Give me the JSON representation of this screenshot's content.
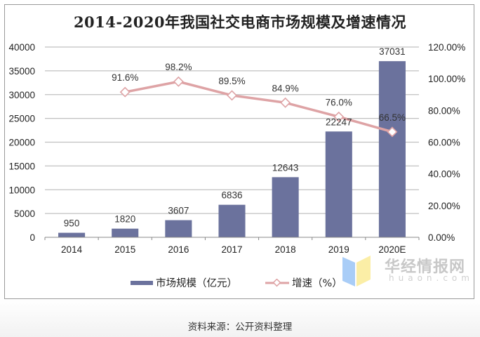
{
  "title": "2014-2020年我国社交电商市场规模及增速情况",
  "source": "资料来源：公开资料整理",
  "watermark": {
    "name_cn": "华经情报网",
    "domain": "huaon.com"
  },
  "colors": {
    "bar": "#6b729d",
    "line": "#dea3a5",
    "grid": "#c0c0c0",
    "axis": "#888888"
  },
  "legend": [
    {
      "label": "市场规模（亿元）",
      "type": "bar"
    },
    {
      "label": "增速（%）",
      "type": "line"
    }
  ],
  "chart_data": {
    "type": "bar",
    "title": "2014-2020年我国社交电商市场规模及增速情况",
    "categories": [
      "2014",
      "2015",
      "2016",
      "2017",
      "2018",
      "2019",
      "2020E"
    ],
    "series": [
      {
        "name": "市场规模（亿元）",
        "type": "bar",
        "axis": "left",
        "values": [
          950,
          1820,
          3607,
          6836,
          12643,
          22247,
          37031
        ],
        "labels": [
          "950",
          "1820",
          "3607",
          "6836",
          "12643",
          "22247",
          "37031"
        ]
      },
      {
        "name": "增速（%）",
        "type": "line",
        "axis": "right",
        "values": [
          null,
          91.6,
          98.2,
          89.5,
          84.9,
          76.0,
          66.5
        ],
        "labels": [
          "",
          "91.6%",
          "98.2%",
          "89.5%",
          "84.9%",
          "76.0%",
          "66.5%"
        ]
      }
    ],
    "y_left": {
      "min": 0,
      "max": 40000,
      "step": 5000,
      "ticks": [
        "0",
        "5000",
        "10000",
        "15000",
        "20000",
        "25000",
        "30000",
        "35000",
        "40000"
      ]
    },
    "y_right": {
      "min": 0,
      "max": 120,
      "step": 20,
      "ticks": [
        "0.00%",
        "20.00%",
        "40.00%",
        "60.00%",
        "80.00%",
        "100.00%",
        "120.00%"
      ]
    },
    "xlabel": "",
    "ylabel": "",
    "grid": true,
    "legend_position": "bottom"
  }
}
